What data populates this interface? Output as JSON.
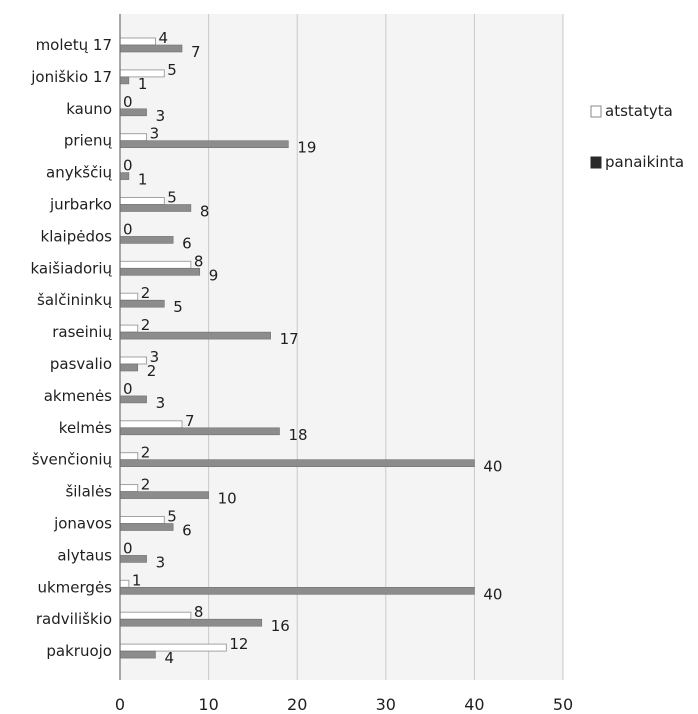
{
  "chart_data": {
    "type": "bar",
    "orientation": "horizontal",
    "categories": [
      "moletų 17",
      "joniškio 17",
      "kauno",
      "prienų",
      "anykščių",
      "jurbarko",
      "klaipėdos",
      "kaišiadorių",
      "šalčininkų",
      "raseinių",
      "pasvalio",
      "akmenės",
      "kelmės",
      "švenčionių",
      "šilalės",
      "jonavos",
      "alytaus",
      "ukmergės",
      "radviliškio",
      "pakruojo"
    ],
    "series": [
      {
        "name": "atstatyta",
        "values": [
          4,
          5,
          0,
          3,
          0,
          5,
          0,
          8,
          2,
          2,
          3,
          0,
          7,
          2,
          2,
          5,
          0,
          1,
          8,
          12
        ],
        "color": "#ffffff"
      },
      {
        "name": "panaikinta",
        "values": [
          7,
          1,
          3,
          19,
          1,
          8,
          6,
          9,
          5,
          17,
          2,
          3,
          18,
          40,
          10,
          6,
          3,
          40,
          16,
          4
        ],
        "color": "#8c8c8c"
      }
    ],
    "xlim": [
      0,
      50
    ],
    "xticks": [
      0,
      10,
      20,
      30,
      40,
      50
    ],
    "grid": true,
    "legend": "right",
    "title": "",
    "xlabel": "",
    "ylabel": ""
  }
}
